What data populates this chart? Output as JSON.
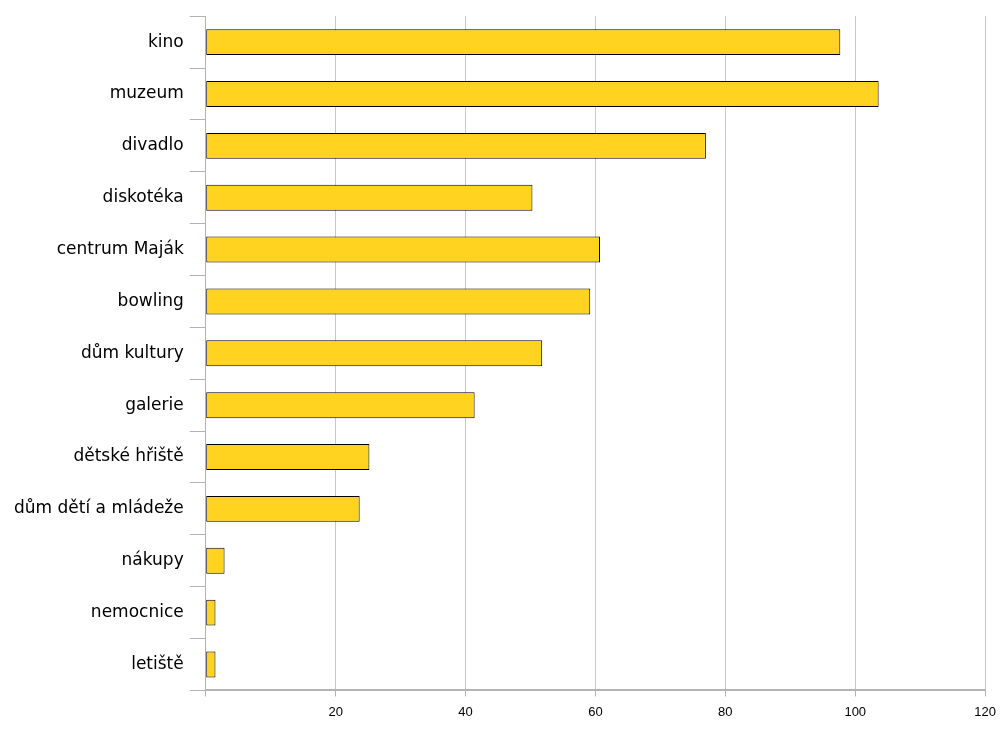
{
  "chart_data": {
    "type": "bar",
    "orientation": "horizontal",
    "categories": [
      "kino",
      "muzeum",
      "divadlo",
      "diskotéka",
      "centrum Maják",
      "bowling",
      "dům kultury",
      "galerie",
      "dětské hřiště",
      "dům dětí a mládeže",
      "nákupy",
      "nemocnice",
      "letiště"
    ],
    "values": [
      97.7,
      103.6,
      77.0,
      50.3,
      60.7,
      59.2,
      51.8,
      41.4,
      25.2,
      23.7,
      2.9,
      1.5,
      1.5
    ],
    "color": "#ffd320",
    "xlim": [
      0,
      120
    ],
    "xticks": [
      {
        "value": 0,
        "label": null
      },
      20,
      40,
      60,
      80,
      100,
      120
    ],
    "grid": "x"
  }
}
